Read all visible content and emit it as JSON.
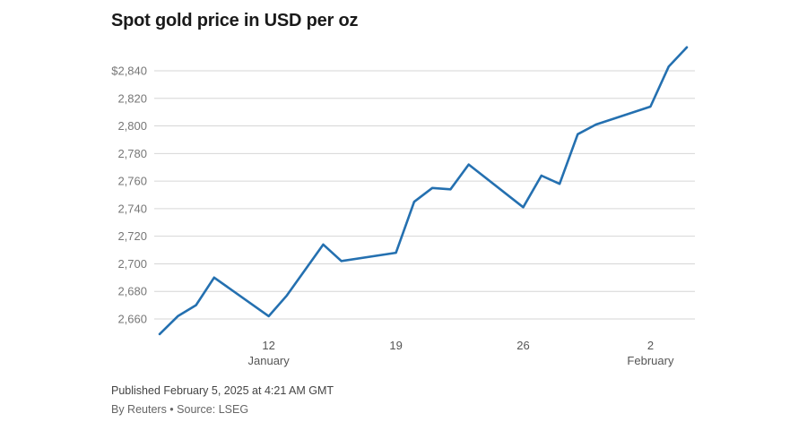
{
  "chart_data": {
    "type": "line",
    "title": "Spot gold price in USD per oz",
    "xlabel": "",
    "ylabel": "",
    "yticks": [
      "$2,840",
      "2,820",
      "2,800",
      "2,780",
      "2,760",
      "2,740",
      "2,720",
      "2,700",
      "2,680",
      "2,660"
    ],
    "ytick_values": [
      2840,
      2820,
      2800,
      2780,
      2760,
      2740,
      2720,
      2700,
      2680,
      2660
    ],
    "ylim": [
      2649,
      2858
    ],
    "xlim": [
      "2025-01-06",
      "2025-02-04"
    ],
    "xticks": [
      {
        "date": "2025-01-12",
        "label": "12",
        "sublabel": "January"
      },
      {
        "date": "2025-01-19",
        "label": "19",
        "sublabel": ""
      },
      {
        "date": "2025-01-26",
        "label": "26",
        "sublabel": ""
      },
      {
        "date": "2025-02-02",
        "label": "2",
        "sublabel": "February"
      }
    ],
    "grid": true,
    "line_color": "#2470b0",
    "series": [
      {
        "x": [
          "2025-01-06",
          "2025-01-07",
          "2025-01-08",
          "2025-01-09",
          "2025-01-12",
          "2025-01-13",
          "2025-01-15",
          "2025-01-16",
          "2025-01-19",
          "2025-01-20",
          "2025-01-21",
          "2025-01-22",
          "2025-01-23",
          "2025-01-26",
          "2025-01-27",
          "2025-01-28",
          "2025-01-29",
          "2025-01-30",
          "2025-02-02",
          "2025-02-03",
          "2025-02-04"
        ],
        "y": [
          2649,
          2662,
          2670,
          2690,
          2662,
          2677,
          2714,
          2702,
          2708,
          2745,
          2755,
          2754,
          2772,
          2741,
          2764,
          2758,
          2794,
          2801,
          2814,
          2843,
          2857
        ]
      }
    ]
  },
  "footer": {
    "published": "Published February 5, 2025 at 4:21 AM GMT",
    "byline": "By Reuters • Source: LSEG"
  }
}
